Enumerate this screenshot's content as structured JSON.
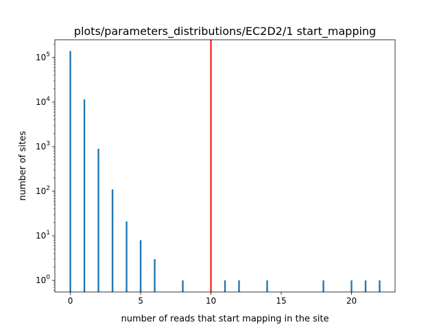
{
  "chart_data": {
    "type": "bar",
    "title": "plots/parameters_distributions/EC2D2/1 start_mapping",
    "xlabel": "number of reads that start mapping in the site",
    "ylabel": "number of sites",
    "xlim": [
      -1.1,
      23.1
    ],
    "ylim": [
      0.55,
      250000
    ],
    "yscale": "log",
    "grid": false,
    "legend": "none",
    "x_ticks": [
      0,
      5,
      10,
      15,
      20
    ],
    "y_ticks": [
      {
        "value": 1,
        "base": "10",
        "exp": "0"
      },
      {
        "value": 10,
        "base": "10",
        "exp": "1"
      },
      {
        "value": 100,
        "base": "10",
        "exp": "2"
      },
      {
        "value": 1000,
        "base": "10",
        "exp": "3"
      },
      {
        "value": 10000,
        "base": "10",
        "exp": "4"
      },
      {
        "value": 100000,
        "base": "10",
        "exp": "5"
      }
    ],
    "bar_color": "#1f77b4",
    "threshold": {
      "x": 10,
      "color": "#ff0000"
    },
    "series": [
      {
        "x": [
          0,
          1,
          2,
          3,
          4,
          5,
          6,
          8,
          11,
          12,
          14,
          18,
          20,
          21,
          22
        ],
        "values": [
          140000,
          11500,
          900,
          110,
          21,
          8,
          3,
          1,
          1,
          1,
          1,
          1,
          1,
          1,
          1
        ]
      }
    ]
  }
}
